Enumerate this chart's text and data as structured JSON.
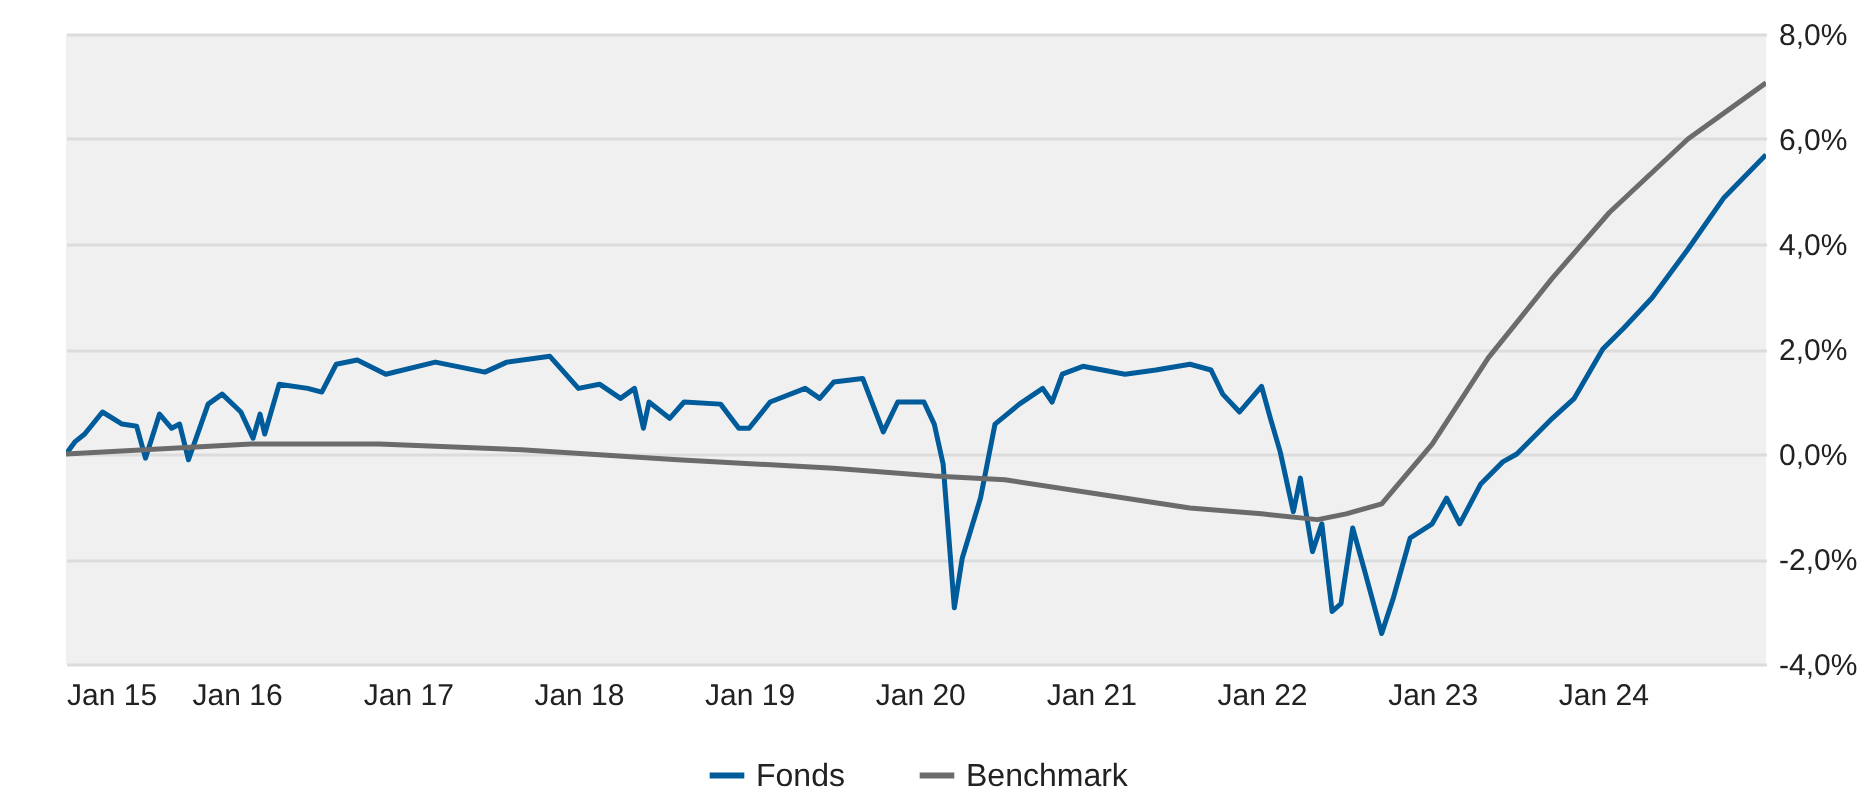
{
  "chart_data": {
    "type": "line",
    "xlim": [
      "2015-01-01",
      "2024-12-15"
    ],
    "xticks": [
      {
        "value": "2015-01-01",
        "label": "Jan 15"
      },
      {
        "value": "2016-01-01",
        "label": "Jan 16"
      },
      {
        "value": "2017-01-01",
        "label": "Jan 17"
      },
      {
        "value": "2018-01-01",
        "label": "Jan 18"
      },
      {
        "value": "2019-01-01",
        "label": "Jan 19"
      },
      {
        "value": "2020-01-01",
        "label": "Jan 20"
      },
      {
        "value": "2021-01-01",
        "label": "Jan 21"
      },
      {
        "value": "2022-01-01",
        "label": "Jan 22"
      },
      {
        "value": "2023-01-01",
        "label": "Jan 23"
      },
      {
        "value": "2024-01-01",
        "label": "Jan 24"
      }
    ],
    "ylim": [
      -4,
      8
    ],
    "yticks": [
      {
        "value": -4,
        "label": "-4,0%"
      },
      {
        "value": -2,
        "label": "-2,0%"
      },
      {
        "value": 0,
        "label": "0,0%"
      },
      {
        "value": 2,
        "label": "2,0%"
      },
      {
        "value": 4,
        "label": "4,0%"
      },
      {
        "value": 6,
        "label": "6,0%"
      },
      {
        "value": 8,
        "label": "8,0%"
      }
    ],
    "grid": "y",
    "legend": "bottom",
    "series": [
      {
        "name": "Fonds",
        "color": "#005b9a",
        "x": [
          "2015-01-01",
          "2015-01-20",
          "2015-02-10",
          "2015-03-20",
          "2015-05-01",
          "2015-06-01",
          "2015-06-20",
          "2015-07-20",
          "2015-08-15",
          "2015-09-01",
          "2015-09-20",
          "2015-11-01",
          "2015-12-01",
          "2016-01-10",
          "2016-02-05",
          "2016-02-20",
          "2016-03-01",
          "2016-04-01",
          "2016-06-01",
          "2016-07-01",
          "2016-08-01",
          "2016-09-15",
          "2016-11-15",
          "2017-03-01",
          "2017-06-15",
          "2017-08-01",
          "2017-11-01",
          "2018-01-01",
          "2018-02-15",
          "2018-04-01",
          "2018-05-01",
          "2018-05-20",
          "2018-06-01",
          "2018-07-15",
          "2018-08-15",
          "2018-11-01",
          "2018-12-10",
          "2019-01-01",
          "2019-02-15",
          "2019-05-01",
          "2019-06-01",
          "2019-07-01",
          "2019-09-01",
          "2019-10-15",
          "2019-11-15",
          "2020-01-10",
          "2020-02-01",
          "2020-02-20",
          "2020-03-15",
          "2020-04-01",
          "2020-05-10",
          "2020-06-10",
          "2020-08-01",
          "2020-09-20",
          "2020-10-10",
          "2020-11-01",
          "2020-12-15",
          "2021-03-15",
          "2021-05-20",
          "2021-08-01",
          "2021-09-15",
          "2021-10-10",
          "2021-11-15",
          "2022-01-01",
          "2022-01-20",
          "2022-02-10",
          "2022-03-10",
          "2022-03-25",
          "2022-04-20",
          "2022-05-10",
          "2022-06-01",
          "2022-06-20",
          "2022-07-15",
          "2022-08-10",
          "2022-09-15",
          "2022-10-10",
          "2022-11-15",
          "2023-01-01",
          "2023-02-01",
          "2023-03-01",
          "2023-04-15",
          "2023-06-01",
          "2023-07-01",
          "2023-09-15",
          "2023-11-01",
          "2024-01-01",
          "2024-02-15",
          "2024-04-15",
          "2024-07-01",
          "2024-09-15",
          "2024-12-15"
        ],
        "values": [
          0.0,
          0.23,
          0.38,
          0.8,
          0.57,
          0.53,
          -0.08,
          0.76,
          0.49,
          0.57,
          -0.11,
          0.95,
          1.14,
          0.8,
          0.3,
          0.76,
          0.38,
          1.33,
          1.25,
          1.18,
          1.71,
          1.79,
          1.52,
          1.75,
          1.56,
          1.75,
          1.86,
          1.25,
          1.33,
          1.06,
          1.25,
          0.49,
          0.99,
          0.68,
          0.99,
          0.95,
          0.49,
          0.49,
          0.99,
          1.25,
          1.06,
          1.37,
          1.44,
          0.42,
          0.99,
          0.99,
          0.57,
          -0.19,
          -2.93,
          -1.98,
          -0.84,
          0.57,
          0.95,
          1.25,
          0.99,
          1.52,
          1.67,
          1.52,
          1.6,
          1.71,
          1.6,
          1.14,
          0.8,
          1.29,
          0.68,
          0.04,
          -1.1,
          -0.46,
          -1.86,
          -1.33,
          -3.0,
          -2.85,
          -1.41,
          -2.24,
          -3.42,
          -2.74,
          -1.6,
          -1.33,
          -0.84,
          -1.33,
          -0.57,
          -0.15,
          0.0,
          0.68,
          1.06,
          2.0,
          2.4,
          2.97,
          3.9,
          4.87,
          5.7
        ]
      },
      {
        "name": "Benchmark",
        "color": "#6b6b6b",
        "x": [
          "2015-01-01",
          "2016-02-01",
          "2016-11-01",
          "2017-09-01",
          "2018-08-01",
          "2019-07-01",
          "2020-02-01",
          "2020-07-01",
          "2021-08-01",
          "2022-01-01",
          "2022-05-01",
          "2022-07-01",
          "2022-09-15",
          "2023-01-01",
          "2023-05-01",
          "2023-09-15",
          "2024-01-15",
          "2024-07-01",
          "2024-12-15"
        ],
        "values": [
          0.0,
          0.19,
          0.19,
          0.08,
          -0.11,
          -0.27,
          -0.42,
          -0.49,
          -1.03,
          -1.14,
          -1.25,
          -1.14,
          -0.95,
          0.19,
          1.83,
          3.35,
          4.6,
          6.0,
          7.07
        ]
      }
    ]
  }
}
